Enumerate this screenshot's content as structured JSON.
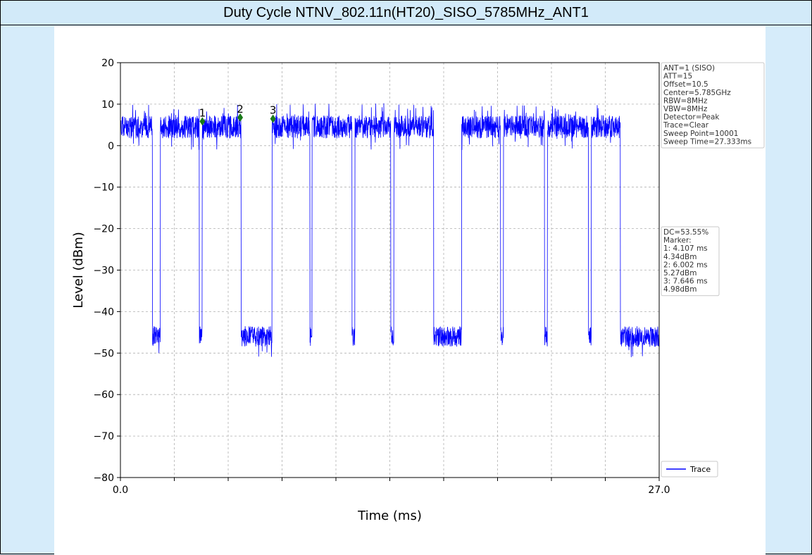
{
  "window": {
    "title": "Duty Cycle NTNV_802.11n(HT20)_SISO_5785MHz_ANT1"
  },
  "colors": {
    "trace": "#0000ff",
    "marker": "#1a7a1a",
    "grid": "#b0b0b0",
    "background": "#d6ecfa"
  },
  "chart_data": {
    "type": "line",
    "xlabel": "Time (ms)",
    "ylabel": "Level (dBm)",
    "xlim": [
      0.0,
      27.0
    ],
    "ylim": [
      -80,
      20
    ],
    "x_tick_labels": [
      "0.0",
      "27.0"
    ],
    "x_ticks": [
      0,
      2.7,
      5.4,
      8.1,
      10.8,
      13.5,
      16.2,
      18.9,
      21.6,
      24.3,
      27.0
    ],
    "y_ticks": [
      20,
      10,
      0,
      -10,
      -20,
      -30,
      -40,
      -50,
      -60,
      -70,
      -80
    ],
    "grid": true,
    "legend_position": "bottom-right",
    "series": [
      {
        "name": "Trace",
        "color": "#0000ff",
        "high_level_dBm": 4.5,
        "low_level_dBm": -46,
        "off_intervals_ms": [
          [
            1.6,
            2.0
          ],
          [
            3.95,
            4.1
          ],
          [
            6.05,
            7.6
          ],
          [
            9.5,
            9.6
          ],
          [
            11.6,
            11.75
          ],
          [
            13.55,
            13.7
          ],
          [
            15.7,
            17.1
          ],
          [
            19.05,
            19.2
          ],
          [
            21.25,
            21.4
          ],
          [
            23.45,
            23.6
          ],
          [
            25.05,
            27.0
          ]
        ]
      }
    ],
    "markers": [
      {
        "label": "1",
        "x": 4.107,
        "y": 4.34
      },
      {
        "label": "2",
        "x": 6.002,
        "y": 5.27
      },
      {
        "label": "3",
        "x": 7.646,
        "y": 4.98
      }
    ],
    "settings_box": [
      "ANT=1 (SISO)",
      "ATT=15",
      "Offset=10.5",
      "Center=5.785GHz",
      "RBW=8MHz",
      "VBW=8MHz",
      "Detector=Peak",
      "Trace=Clear",
      "Sweep Point=10001",
      "Sweep Time=27.333ms"
    ],
    "results_box": [
      "DC=53.55%",
      "Marker:",
      "1: 4.107 ms",
      "    4.34dBm",
      "2: 6.002 ms",
      "    5.27dBm",
      "3: 7.646 ms",
      "    4.98dBm"
    ]
  }
}
